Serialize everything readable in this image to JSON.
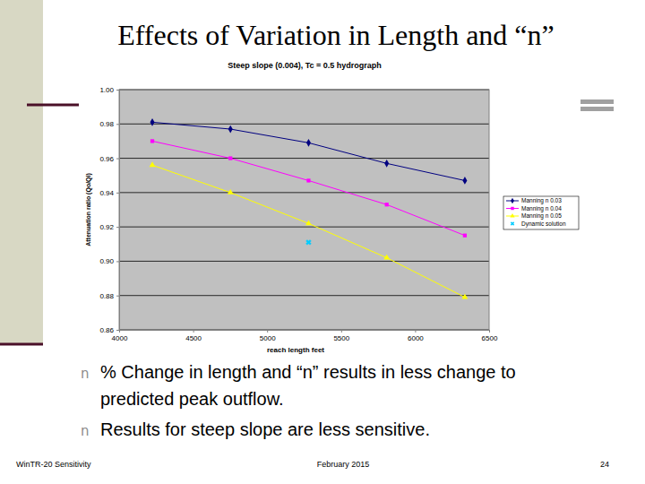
{
  "slide": {
    "title": "Effects of Variation in Length and “n”",
    "bullet": "n",
    "bullets": [
      [
        "% Change in length and “n” results in less change to",
        "predicted peak outflow."
      ],
      [
        "Results for steep slope are less sensitive."
      ]
    ],
    "footer": {
      "left": "WinTR-20 Sensitivity",
      "center": "February 2015",
      "right": "24"
    }
  },
  "chart_data": {
    "type": "line",
    "title": "Steep slope (0.004), Tc = 0.5 hydrograph",
    "x_label": "reach length feet",
    "y_label": "Attenuation ratio (Qo/Qi)",
    "x": [
      4224,
      4752,
      5280,
      5808,
      6336
    ],
    "series": [
      {
        "name": "Manning n 0.03",
        "color": "#000080",
        "marker": "diamond",
        "line_style": "solid",
        "values": [
          0.981,
          0.977,
          0.969,
          0.957,
          0.947
        ]
      },
      {
        "name": "Manning n 0.04",
        "color": "#ff00ff",
        "marker": "square",
        "line_style": "solid",
        "values": [
          0.97,
          0.96,
          0.947,
          0.933,
          0.915
        ]
      },
      {
        "name": "Manning n 0.05",
        "color": "#ffff00",
        "marker": "triangle",
        "line_style": "solid",
        "values": [
          0.956,
          0.94,
          0.922,
          0.902,
          0.879
        ]
      },
      {
        "name": "Dynamic solution",
        "color": "#00ccff",
        "marker": "x",
        "line_style": "none",
        "values": [
          null,
          null,
          0.911,
          null,
          null
        ]
      }
    ],
    "xlim": [
      4000,
      6500
    ],
    "xticks": [
      4000,
      4500,
      5000,
      5500,
      6000,
      6500
    ],
    "ylim": [
      0.86,
      1
    ],
    "yticks": [
      0.86,
      0.88,
      {
        "value": 0.9,
        "label": "0.90"
      },
      0.92,
      0.94,
      0.96,
      0.98,
      {
        "value": 1,
        "label": "1.00"
      }
    ],
    "grid": true,
    "legend": "right"
  }
}
